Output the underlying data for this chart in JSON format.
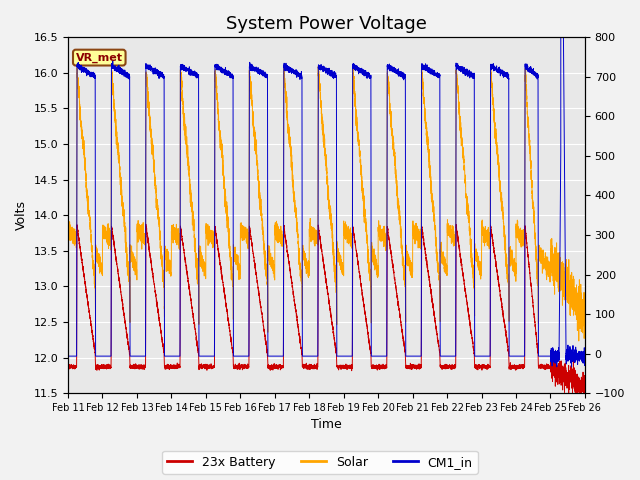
{
  "title": "System Power Voltage",
  "xlabel": "Time",
  "ylabel_left": "Volts",
  "ylim_left": [
    11.5,
    16.5
  ],
  "ylim_right": [
    -100,
    800
  ],
  "yticks_left": [
    11.5,
    12.0,
    12.5,
    13.0,
    13.5,
    14.0,
    14.5,
    15.0,
    15.5,
    16.0,
    16.5
  ],
  "yticks_right": [
    -100,
    0,
    100,
    200,
    300,
    400,
    500,
    600,
    700,
    800
  ],
  "xtick_labels": [
    "Feb 11",
    "Feb 12",
    "Feb 13",
    "Feb 14",
    "Feb 15",
    "Feb 16",
    "Feb 17",
    "Feb 18",
    "Feb 19",
    "Feb 20",
    "Feb 21",
    "Feb 22",
    "Feb 23",
    "Feb 24",
    "Feb 25",
    "Feb 26"
  ],
  "n_days": 15,
  "color_battery": "#CC0000",
  "color_solar": "#FFA500",
  "color_cm1": "#0000CC",
  "legend_labels": [
    "23x Battery",
    "Solar",
    "CM1_in"
  ],
  "vr_met_label": "VR_met",
  "bg_color": "#E8E8E8",
  "grid_color": "#FFFFFF",
  "title_fontsize": 13,
  "axis_fontsize": 9,
  "legend_fontsize": 9,
  "fig_width": 6.4,
  "fig_height": 4.8,
  "dpi": 100
}
